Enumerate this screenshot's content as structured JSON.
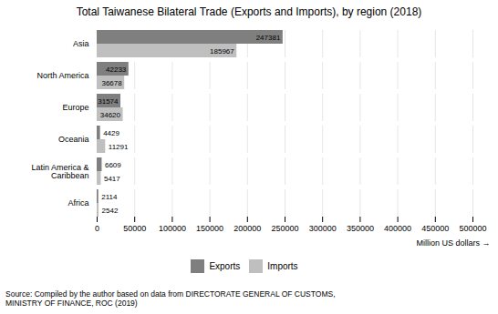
{
  "chart_data": {
    "type": "bar",
    "orientation": "horizontal",
    "title": "Total Taiwanese Bilateral Trade (Exports and Imports), by region (2018)",
    "xlabel": "Million US dollars",
    "source": "Source: Compiled by the author based on data from DIRECTORATE GENERAL OF CUSTOMS,\nMINISTRY OF FINANCE, ROC (2019)",
    "categories": [
      "Africa",
      "Latin America &\nCaribbean",
      "Oceania",
      "Europe",
      "North America",
      "Asia"
    ],
    "series": [
      {
        "name": "Exports",
        "color": "#7f7f7f",
        "values": [
          2114,
          6609,
          4429,
          31574,
          42233,
          247381
        ]
      },
      {
        "name": "Imports",
        "color": "#bfbfbf",
        "values": [
          2542,
          5417,
          11291,
          34620,
          36678,
          185967
        ]
      }
    ],
    "xlim": [
      0,
      500000
    ],
    "xticks": [
      0,
      50000,
      100000,
      150000,
      200000,
      250000,
      300000,
      350000,
      400000,
      450000,
      500000
    ],
    "grid": true,
    "legend": "bottom",
    "data_labels": true
  }
}
